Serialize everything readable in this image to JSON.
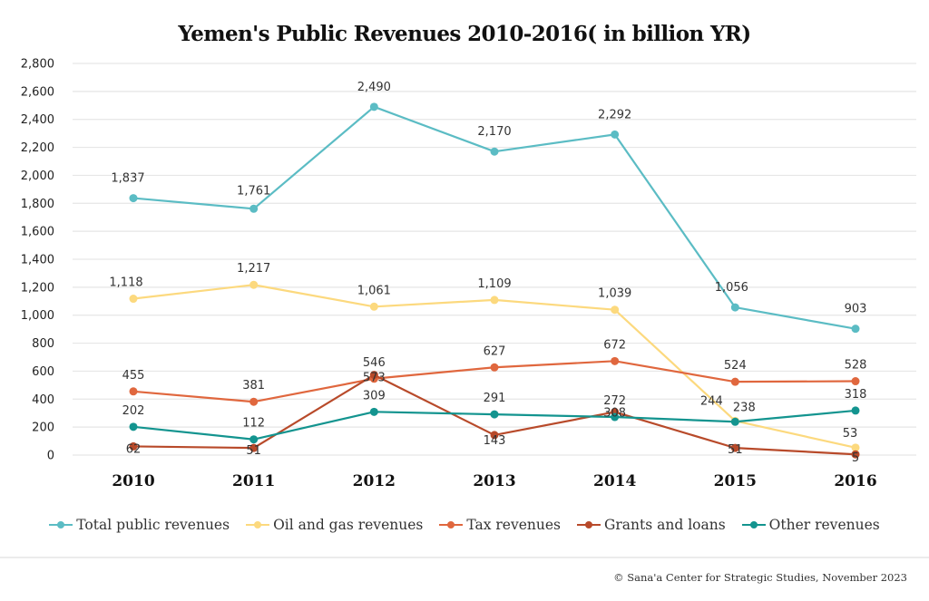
{
  "chart_data": {
    "type": "line",
    "title": "Yemen's Public Revenues 2010-2016( in billion YR)",
    "xlabel": "",
    "ylabel": "",
    "categories": [
      "2010",
      "2011",
      "2012",
      "2013",
      "2014",
      "2015",
      "2016"
    ],
    "ylim": [
      0,
      2800
    ],
    "yticks": [
      0,
      200,
      400,
      600,
      800,
      1000,
      1200,
      1400,
      1600,
      1800,
      2000,
      2200,
      2400,
      2600,
      2800
    ],
    "ytick_labels": [
      "0",
      "200",
      "400",
      "600",
      "800",
      "1,000",
      "1,200",
      "1,400",
      "1,600",
      "1,800",
      "2,000",
      "2,200",
      "2,400",
      "2,600",
      "2,800"
    ],
    "grid": true,
    "legend_position": "bottom",
    "series": [
      {
        "name": "Total public revenues",
        "color": "#5bbcc4",
        "values": [
          1837,
          1761,
          2490,
          2170,
          2292,
          1056,
          903
        ],
        "labels": [
          "1,837",
          "1,761",
          "2,490",
          "2,170",
          "2,292",
          "1,056",
          "903"
        ]
      },
      {
        "name": "Oil and gas revenues",
        "color": "#fcd97e",
        "values": [
          1118,
          1217,
          1061,
          1109,
          1039,
          244,
          53
        ],
        "labels": [
          "1,118",
          "1,217",
          "1,061",
          "1,109",
          "1,039",
          "244",
          "53"
        ]
      },
      {
        "name": "Tax revenues",
        "color": "#e0673e",
        "values": [
          455,
          381,
          546,
          627,
          672,
          524,
          528
        ],
        "labels": [
          "455",
          "381",
          "546",
          "627",
          "672",
          "524",
          "528"
        ]
      },
      {
        "name": "Grants and loans",
        "color": "#b84a2a",
        "values": [
          62,
          51,
          573,
          143,
          308,
          51,
          5
        ],
        "labels": [
          "62",
          "51",
          "573",
          "143",
          "308",
          "51",
          "5"
        ]
      },
      {
        "name": "Other revenues",
        "color": "#13948f",
        "values": [
          202,
          112,
          309,
          291,
          272,
          238,
          318
        ],
        "labels": [
          "202",
          "112",
          "309",
          "291",
          "272",
          "238",
          "318"
        ]
      }
    ]
  },
  "footer": {
    "credit": "© Sana'a Center for Strategic Studies, November 2023"
  }
}
